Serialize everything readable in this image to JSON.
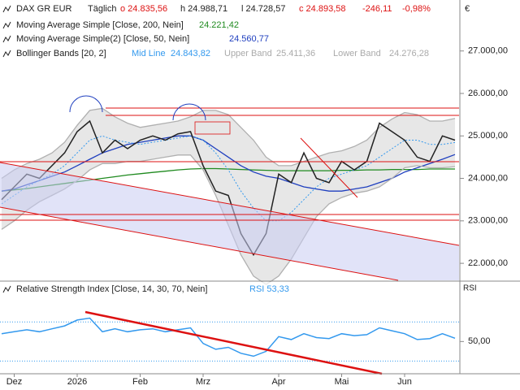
{
  "header": {
    "instrument": "DAX GR EUR",
    "interval": "Täglich",
    "open": "o 24.835,56",
    "high": "h 24.988,71",
    "low": "l 24.728,57",
    "close": "c 24.893,58",
    "change": "-246,11",
    "change_pct": "-0,98%",
    "currency": "€"
  },
  "chart_data": [
    {
      "type": "line",
      "title": "DAX GR EUR",
      "color": "#222222",
      "categories": [
        null,
        "Dez",
        null,
        null,
        null,
        null,
        "2026",
        null,
        null,
        null,
        null,
        "Feb",
        null,
        null,
        null,
        null,
        "Mrz",
        null,
        null,
        null,
        null,
        null,
        "Apr",
        null,
        null,
        null,
        null,
        "Mai",
        null,
        null,
        null,
        null,
        "Jun",
        null,
        null,
        null,
        null
      ],
      "values": [
        23500,
        23800,
        24100,
        24000,
        24300,
        24600,
        25100,
        25350,
        24600,
        24900,
        24700,
        24900,
        25000,
        24900,
        25050,
        25100,
        24300,
        23700,
        23600,
        22700,
        22200,
        22700,
        24100,
        23900,
        24600,
        24000,
        23900,
        24400,
        24200,
        24400,
        25300,
        25100,
        24900,
        24500,
        24400,
        25000,
        24900
      ],
      "bands_title": "Bollinger Bands [20, 2]",
      "series": [
        {
          "name": "Moving Average Simple [Close, 200, Nein]",
          "last_label": "24.221,42",
          "color": "#1f8a1f",
          "values": [
            23700,
            23730,
            23760,
            23800,
            23840,
            23880,
            23920,
            23960,
            24000,
            24040,
            24080,
            24110,
            24140,
            24170,
            24200,
            24220,
            24230,
            24230,
            24220,
            24210,
            24200,
            24190,
            24180,
            24180,
            24180,
            24180,
            24180,
            24190,
            24190,
            24200,
            24200,
            24210,
            24210,
            24210,
            24220,
            24220,
            24221.42
          ]
        },
        {
          "name": "Moving Average Simple(2) [Close, 50, Nein]",
          "last_label": "24.560,77",
          "color": "#1f3fbf",
          "values": [
            23700,
            23750,
            23850,
            23950,
            24050,
            24150,
            24300,
            24450,
            24600,
            24700,
            24800,
            24850,
            24900,
            24950,
            25000,
            25000,
            24900,
            24700,
            24500,
            24300,
            24150,
            24050,
            24000,
            23900,
            23800,
            23750,
            23700,
            23700,
            23750,
            23800,
            23900,
            24000,
            24150,
            24250,
            24350,
            24450,
            24560.77
          ]
        },
        {
          "name": "Mid Line",
          "last_label": "24.843,82",
          "color": "#3399ee",
          "dash": true,
          "values": [
            23400,
            23600,
            23800,
            23950,
            24100,
            24300,
            24600,
            24900,
            25000,
            24900,
            24850,
            24800,
            24850,
            24900,
            24950,
            25000,
            24900,
            24600,
            24200,
            23700,
            23300,
            23000,
            23000,
            23200,
            23500,
            23800,
            24000,
            24100,
            24200,
            24300,
            24500,
            24700,
            24900,
            24900,
            24800,
            24800,
            24843.82
          ]
        },
        {
          "name": "Upper Band",
          "last_label": "25.411,36",
          "color": "#b0b0b0",
          "values": [
            24000,
            24200,
            24350,
            24450,
            24600,
            24850,
            25250,
            25600,
            25650,
            25450,
            25300,
            25200,
            25250,
            25300,
            25350,
            25450,
            25600,
            25600,
            25500,
            25200,
            24900,
            24500,
            24300,
            24300,
            24400,
            24500,
            24600,
            24650,
            24750,
            24900,
            25200,
            25400,
            25550,
            25500,
            25350,
            25350,
            25411.36
          ]
        },
        {
          "name": "Lower Band",
          "last_label": "24.276,28",
          "color": "#b0b0b0",
          "values": [
            22800,
            23000,
            23250,
            23450,
            23600,
            23750,
            23950,
            24200,
            24350,
            24350,
            24400,
            24400,
            24450,
            24500,
            24550,
            24550,
            24200,
            23600,
            22900,
            22200,
            21700,
            21500,
            21700,
            22100,
            22600,
            23100,
            23400,
            23550,
            23650,
            23700,
            23800,
            24000,
            24250,
            24300,
            24250,
            24250,
            24276.28
          ]
        }
      ],
      "ylim": [
        21600,
        28200
      ],
      "yticks": [
        {
          "value": 22000,
          "label": "22.000,00"
        },
        {
          "value": 23000,
          "label": "23.000,00"
        },
        {
          "value": 24000,
          "label": "24.000,00"
        },
        {
          "value": 25000,
          "label": "25.000,00"
        },
        {
          "value": 26000,
          "label": "26.000,00"
        },
        {
          "value": 27000,
          "label": "27.000,00"
        }
      ]
    },
    {
      "type": "line",
      "title": "Relative Strength Index [Close, 14, 30, 70, Nein]",
      "axis_title": "RSI",
      "last_label": "RSI 53,33",
      "color": "#3399ee",
      "values": [
        58,
        60,
        62,
        60,
        63,
        66,
        72,
        74,
        60,
        63,
        60,
        62,
        63,
        60,
        62,
        64,
        48,
        42,
        44,
        38,
        35,
        40,
        55,
        52,
        58,
        54,
        53,
        58,
        56,
        57,
        64,
        61,
        58,
        52,
        53,
        58,
        53.33
      ],
      "levels": [
        30,
        70
      ],
      "ylim": [
        17,
        111
      ],
      "yticks": [
        {
          "value": 50,
          "label": "50,00"
        }
      ]
    }
  ]
}
